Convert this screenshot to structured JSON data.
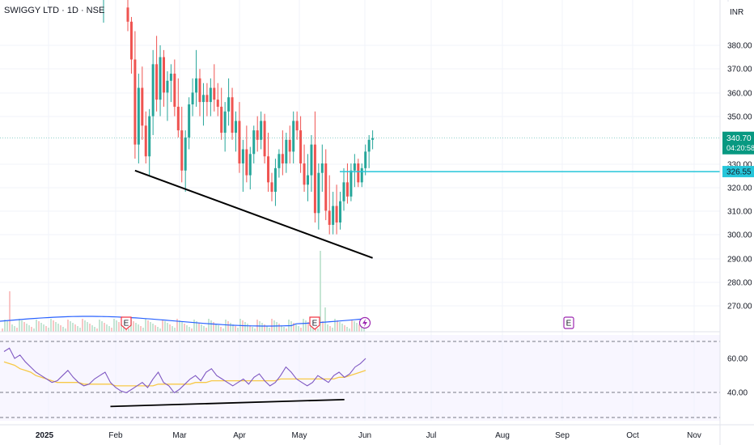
{
  "header": {
    "title": "SWIGGY LTD · 1D · NSE"
  },
  "price_axis": {
    "currency": "INR",
    "ticks": [
      "380.00",
      "370.00",
      "360.00",
      "350.00",
      "330.00",
      "320.00",
      "310.00",
      "300.00",
      "290.00",
      "280.00",
      "270.00"
    ],
    "last_price_label": "340.70",
    "countdown_label": "04:20:58",
    "level_label": "326.55",
    "last_price_color": "#089981",
    "level_color": "#26c6da"
  },
  "rsi_axis": {
    "ticks": [
      "60.00",
      "40.00"
    ]
  },
  "time_axis": {
    "labels": [
      "2025",
      "Feb",
      "Mar",
      "Apr",
      "May",
      "Jun",
      "Jul",
      "Aug",
      "Sep",
      "Oct",
      "Nov"
    ]
  },
  "event_markers": [
    {
      "label": "E",
      "kind": "earnings",
      "color": "#f23645"
    },
    {
      "label": "E",
      "kind": "earnings",
      "color": "#f23645"
    },
    {
      "label": "E",
      "kind": "earnings-upcoming",
      "color": "#9c27b0"
    }
  ],
  "chart_data": {
    "type": "candlestick",
    "symbol": "SWIGGY LTD",
    "interval": "1D",
    "exchange": "NSE",
    "y_range": [
      262,
      400
    ],
    "rsi_range": [
      30,
      70
    ],
    "last_price": 340.7,
    "horizontal_level": 326.55,
    "candles": [
      [
        396,
        400,
        386,
        390
      ],
      [
        390,
        392,
        368,
        374
      ],
      [
        374,
        386,
        332,
        338
      ],
      [
        338,
        368,
        330,
        362
      ],
      [
        362,
        371,
        340,
        346
      ],
      [
        346,
        352,
        330,
        333
      ],
      [
        333,
        353,
        325,
        350
      ],
      [
        350,
        378,
        342,
        372
      ],
      [
        372,
        384,
        352,
        357
      ],
      [
        357,
        380,
        350,
        375
      ],
      [
        375,
        378,
        354,
        360
      ],
      [
        360,
        369,
        348,
        365
      ],
      [
        365,
        372,
        356,
        368
      ],
      [
        368,
        374,
        350,
        354
      ],
      [
        354,
        366,
        341,
        344
      ],
      [
        344,
        354,
        322,
        327
      ],
      [
        327,
        344,
        318,
        341
      ],
      [
        341,
        358,
        336,
        355
      ],
      [
        355,
        366,
        350,
        360
      ],
      [
        360,
        378,
        354,
        366
      ],
      [
        366,
        370,
        350,
        356
      ],
      [
        356,
        364,
        346,
        359
      ],
      [
        359,
        364,
        350,
        356
      ],
      [
        356,
        366,
        350,
        362
      ],
      [
        362,
        372,
        352,
        357
      ],
      [
        357,
        364,
        350,
        354
      ],
      [
        354,
        362,
        340,
        343
      ],
      [
        343,
        356,
        335,
        352
      ],
      [
        352,
        366,
        346,
        358
      ],
      [
        358,
        362,
        340,
        343
      ],
      [
        343,
        352,
        335,
        348
      ],
      [
        348,
        356,
        326,
        330
      ],
      [
        330,
        340,
        318,
        336
      ],
      [
        336,
        346,
        322,
        325
      ],
      [
        325,
        337,
        319,
        334
      ],
      [
        334,
        346,
        330,
        344
      ],
      [
        344,
        350,
        335,
        340
      ],
      [
        340,
        352,
        336,
        348
      ],
      [
        348,
        351,
        330,
        333
      ],
      [
        333,
        343,
        318,
        322
      ],
      [
        322,
        326,
        314,
        318
      ],
      [
        318,
        332,
        312,
        328
      ],
      [
        328,
        336,
        324,
        334
      ],
      [
        334,
        344,
        325,
        330
      ],
      [
        330,
        343,
        326,
        340
      ],
      [
        340,
        346,
        330,
        335
      ],
      [
        335,
        352,
        330,
        348
      ],
      [
        348,
        352,
        340,
        344
      ],
      [
        344,
        350,
        326,
        330
      ],
      [
        330,
        338,
        318,
        321
      ],
      [
        321,
        334,
        314,
        325
      ],
      [
        325,
        342,
        318,
        338
      ],
      [
        338,
        352,
        305,
        309
      ],
      [
        309,
        330,
        302,
        326
      ],
      [
        326,
        338,
        318,
        330
      ],
      [
        330,
        336,
        306,
        310
      ],
      [
        310,
        325,
        300,
        304
      ],
      [
        304,
        318,
        300,
        312
      ],
      [
        312,
        321,
        300,
        305
      ],
      [
        305,
        318,
        302,
        314
      ],
      [
        314,
        328,
        310,
        322
      ],
      [
        322,
        330,
        313,
        316
      ],
      [
        316,
        330,
        314,
        327
      ],
      [
        327,
        334,
        320,
        330
      ],
      [
        330,
        332,
        320,
        322
      ],
      [
        322,
        330,
        320,
        328
      ],
      [
        328,
        338,
        325,
        335
      ],
      [
        335,
        342,
        328,
        340
      ],
      [
        340,
        344,
        336,
        340.7
      ]
    ],
    "trendlines": [
      {
        "pane": "price",
        "from": [
          2,
          327
        ],
        "to": [
          68,
          290
        ]
      },
      {
        "pane": "rsi",
        "from": [
          20,
          32
        ],
        "to": [
          64,
          36
        ]
      }
    ],
    "rsi": [
      64,
      66,
      60,
      62,
      58,
      55,
      52,
      50,
      48,
      46,
      47,
      50,
      53,
      49,
      46,
      44,
      45,
      48,
      50,
      52,
      46,
      43,
      41,
      40,
      42,
      44,
      46,
      43,
      48,
      52,
      46,
      44,
      40,
      42,
      45,
      48,
      50,
      47,
      52,
      54,
      50,
      48,
      46,
      44,
      46,
      48,
      45,
      49,
      51,
      47,
      44,
      46,
      50,
      55,
      52,
      48,
      46,
      44,
      46,
      50,
      48,
      46,
      50,
      52,
      49,
      51,
      55,
      57,
      60
    ],
    "rsi_ma": [
      58,
      57,
      56,
      54,
      53,
      52,
      50,
      49,
      48,
      47,
      46,
      46,
      46,
      46,
      46,
      45,
      45,
      45,
      45,
      45,
      45,
      44,
      44,
      44,
      44,
      44,
      44,
      44,
      44,
      45,
      45,
      45,
      45,
      45,
      45,
      45,
      46,
      46,
      46,
      47,
      47,
      47,
      47,
      47,
      47,
      47,
      47,
      47,
      47,
      47,
      47,
      47,
      48,
      48,
      48,
      48,
      48,
      48,
      48,
      48,
      48,
      48,
      48,
      49,
      49,
      50,
      51,
      52,
      53
    ]
  }
}
